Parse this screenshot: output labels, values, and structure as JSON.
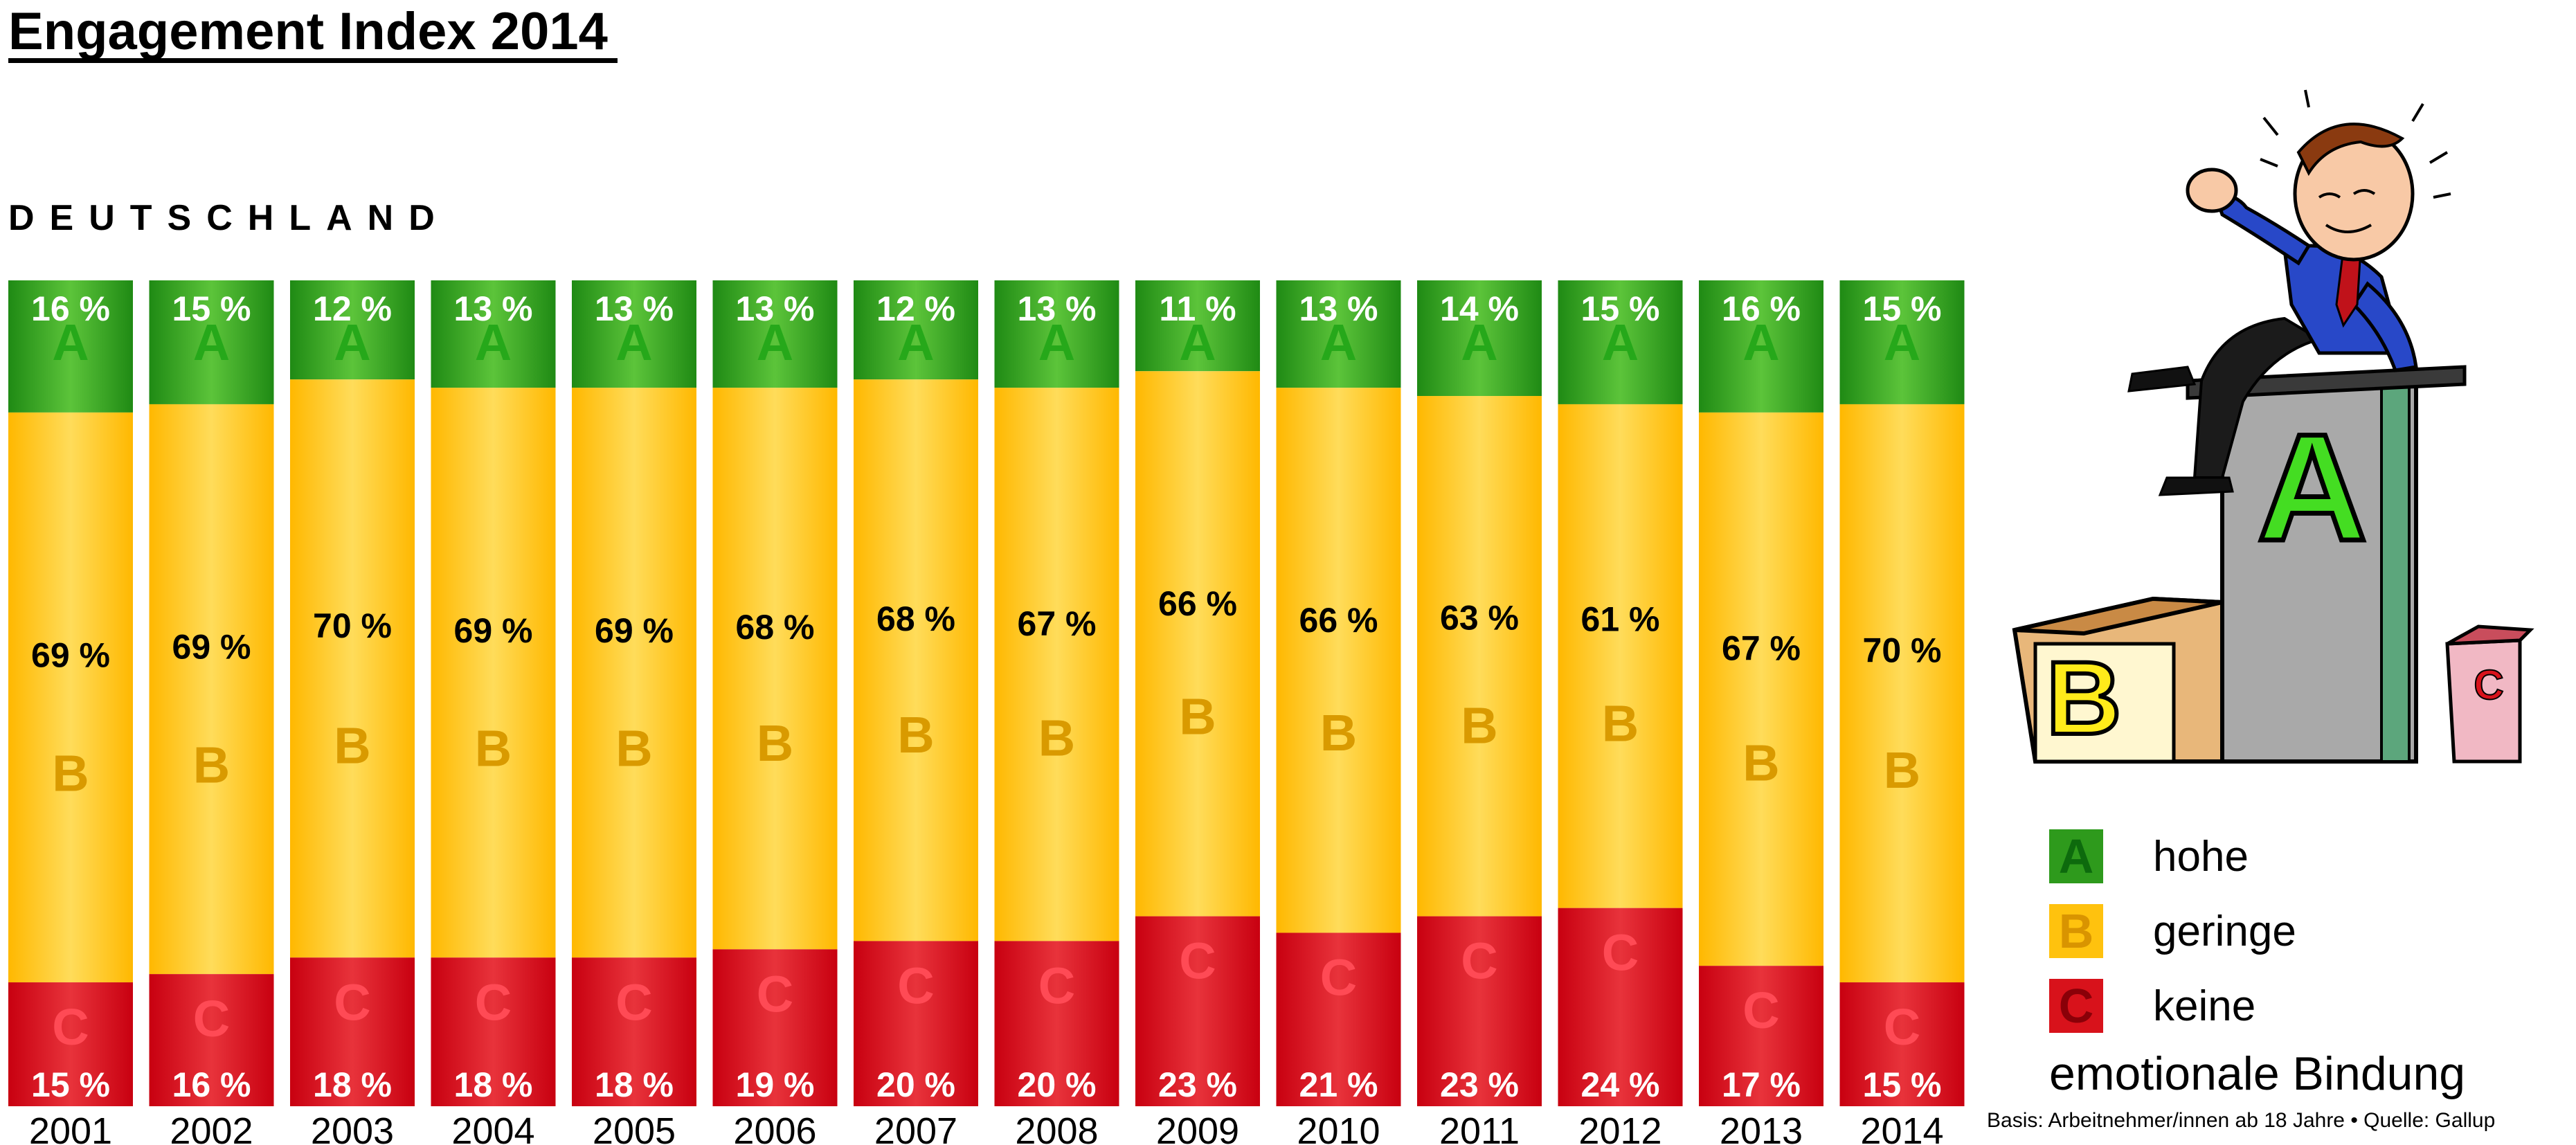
{
  "title": "Engagement Index 2014",
  "country": "DEUTSCHLAND",
  "chart_data": {
    "type": "bar",
    "stacked": true,
    "categories": [
      "2001",
      "2002",
      "2003",
      "2004",
      "2005",
      "2006",
      "2007",
      "2008",
      "2009",
      "2010",
      "2011",
      "2012",
      "2013",
      "2014"
    ],
    "series": [
      {
        "name": "hohe",
        "letter": "A",
        "values": [
          16,
          15,
          12,
          13,
          13,
          13,
          12,
          13,
          11,
          13,
          14,
          15,
          16,
          15
        ],
        "color": "#2e9a1c"
      },
      {
        "name": "geringe",
        "letter": "B",
        "values": [
          69,
          69,
          70,
          69,
          69,
          68,
          68,
          67,
          66,
          66,
          63,
          61,
          67,
          70
        ],
        "color": "#ffc20e"
      },
      {
        "name": "keine",
        "letter": "C",
        "values": [
          15,
          16,
          18,
          18,
          18,
          19,
          20,
          20,
          23,
          21,
          23,
          24,
          17,
          15
        ],
        "color": "#d8121b"
      }
    ],
    "value_suffix": " %",
    "ylim": [
      0,
      100
    ]
  },
  "legend": {
    "items": [
      {
        "letter": "A",
        "label": "hohe",
        "color": "#2e9a1c",
        "letter_color": "#0d6a0d"
      },
      {
        "letter": "B",
        "label": "geringe",
        "color": "#ffc20e",
        "letter_color": "#d99400"
      },
      {
        "letter": "C",
        "label": "keine",
        "color": "#d8121b",
        "letter_color": "#8a0008"
      }
    ],
    "caption": "emotionale Bindung"
  },
  "illustration": {
    "podium_letters": [
      "A",
      "B",
      "C"
    ]
  },
  "source": "Basis: Arbeitnehmer/innen ab 18 Jahre • Quelle: Gallup"
}
